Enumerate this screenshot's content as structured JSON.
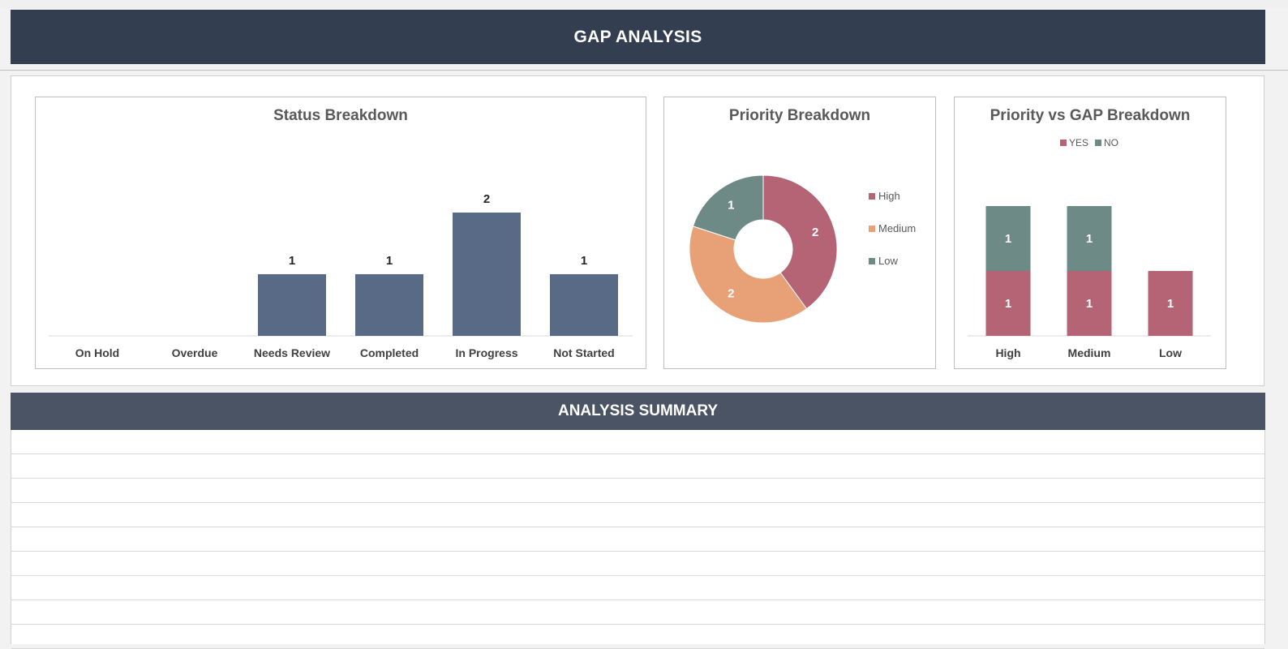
{
  "header": {
    "title": "GAP ANALYSIS"
  },
  "summary": {
    "title": "ANALYSIS SUMMARY",
    "row_count": 9
  },
  "colors": {
    "header_bg": "#333e50",
    "summary_bg": "#4a5465",
    "bar": "#586a85",
    "high": "#b56475",
    "medium": "#e8a177",
    "low": "#6e8a87",
    "yes": "#b56475",
    "no": "#6e8a87"
  },
  "chart_data": [
    {
      "type": "bar",
      "title": "Status Breakdown",
      "categories": [
        "On Hold",
        "Overdue",
        "Needs Review",
        "Completed",
        "In Progress",
        "Not Started"
      ],
      "values": [
        0,
        0,
        1,
        1,
        2,
        1
      ],
      "data_labels": [
        "",
        "",
        "1",
        "1",
        "2",
        "1"
      ],
      "ylim": [
        0,
        2.5
      ],
      "grid": false,
      "legend": "none"
    },
    {
      "type": "pie",
      "title": "Priority Breakdown",
      "hole": true,
      "slices": [
        {
          "label": "High",
          "value": 2
        },
        {
          "label": "Medium",
          "value": 2
        },
        {
          "label": "Low",
          "value": 1
        }
      ],
      "legend": "right"
    },
    {
      "type": "bar",
      "title": "Priority vs GAP Breakdown",
      "stacked": true,
      "categories": [
        "High",
        "Medium",
        "Low"
      ],
      "series": [
        {
          "name": "YES",
          "values": [
            1,
            1,
            1
          ]
        },
        {
          "name": "NO",
          "values": [
            1,
            1,
            0
          ]
        }
      ],
      "ylim": [
        0,
        2.5
      ],
      "grid": false,
      "legend": "top"
    }
  ]
}
